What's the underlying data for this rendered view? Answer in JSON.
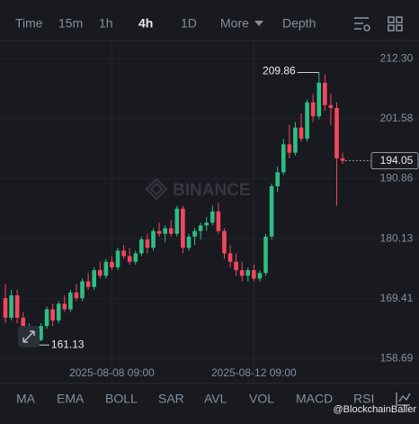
{
  "toolbar": {
    "tabs": [
      "Time",
      "15m",
      "1h",
      "4h",
      "1D",
      "More",
      "Depth"
    ]
  },
  "indicators": [
    "MA",
    "EMA",
    "BOLL",
    "SAR",
    "AVL",
    "VOL",
    "MACD",
    "RSI"
  ],
  "watermark": "BINANCE",
  "credit": "@BlockchainBaller",
  "chart_data": {
    "type": "candlestick",
    "categories": [
      null,
      null,
      null,
      null,
      null,
      null,
      null,
      null,
      null,
      null,
      null,
      null,
      null,
      null,
      null,
      null,
      null,
      null,
      "2025-08-08 09:00",
      null,
      null,
      null,
      null,
      null,
      null,
      null,
      null,
      null,
      null,
      null,
      null,
      null,
      null,
      null,
      null,
      null,
      null,
      null,
      null,
      null,
      null,
      null,
      "2025-08-12 09:00",
      null,
      null,
      null,
      null,
      null,
      null,
      null,
      null,
      null,
      null,
      null,
      null,
      null,
      null,
      null
    ],
    "open": [
      169.5,
      166,
      170,
      166,
      163,
      164,
      162,
      164.5,
      167.5,
      165.5,
      168.5,
      167.5,
      170.5,
      169.5,
      172.5,
      171.5,
      174.5,
      173.5,
      176,
      175,
      178,
      177,
      176,
      177.5,
      180,
      178.5,
      181.5,
      181,
      182,
      181,
      185.5,
      178.5,
      180.5,
      181.5,
      182.5,
      183,
      185,
      181.5,
      177.5,
      176,
      174.5,
      173.5,
      174.5,
      173,
      174,
      180.5,
      189.5,
      192,
      197,
      195.5,
      200,
      198,
      204.5,
      202,
      208,
      204,
      203.5,
      194.5
    ],
    "high": [
      172,
      171,
      171,
      167,
      165,
      164.5,
      165,
      168,
      168.5,
      169,
      170,
      171,
      172,
      173,
      174,
      175,
      176,
      176.5,
      177,
      178.5,
      179,
      178.5,
      178,
      180.5,
      181,
      182,
      183,
      182.5,
      183.5,
      186,
      186,
      181,
      182,
      183,
      184,
      186,
      186.5,
      182,
      179,
      177.5,
      176,
      175,
      175.5,
      174.5,
      181,
      190,
      193,
      198,
      200.5,
      201,
      202.5,
      205,
      206,
      209.86,
      209.5,
      206,
      204.5,
      195.5
    ],
    "low": [
      165,
      165.5,
      165,
      162,
      161.5,
      161.13,
      161.8,
      164,
      164.5,
      165,
      167,
      167,
      169,
      169,
      171,
      171,
      173,
      173,
      174.5,
      174.5,
      176.5,
      175.5,
      175.5,
      177,
      177.5,
      178,
      180.5,
      179.5,
      180.5,
      180.5,
      177.5,
      178,
      179,
      180,
      181.5,
      182.5,
      181,
      176.5,
      175,
      173.5,
      172.5,
      172.5,
      172.5,
      172.5,
      173.5,
      180,
      188.5,
      191.5,
      194.5,
      195,
      197.5,
      197.5,
      201,
      201.5,
      203,
      200.5,
      186,
      193.5
    ],
    "close": [
      166,
      170,
      166,
      163,
      164,
      162,
      164.5,
      167.5,
      165.5,
      168.5,
      167.5,
      170.5,
      169.5,
      172.5,
      171.5,
      174.5,
      173.5,
      176,
      175,
      178,
      177,
      176,
      177.5,
      180,
      178.5,
      181.5,
      181,
      182,
      181,
      185.5,
      178.5,
      180.5,
      181.5,
      182.5,
      183,
      185,
      181.5,
      177.5,
      176,
      174.5,
      173.5,
      174.5,
      173,
      174,
      180.5,
      189.5,
      192,
      197,
      195.5,
      200,
      198,
      204.5,
      202,
      208,
      204,
      203.5,
      194.5,
      194.05
    ],
    "up_color": "#2ebd85",
    "down_color": "#f6465d",
    "ylim": [
      154.4,
      215.4
    ],
    "yticks": [
      {
        "value": 212.3,
        "label": "212.30"
      },
      201.58,
      190.86,
      180.13,
      169.41,
      158.69
    ],
    "grid": true
  }
}
